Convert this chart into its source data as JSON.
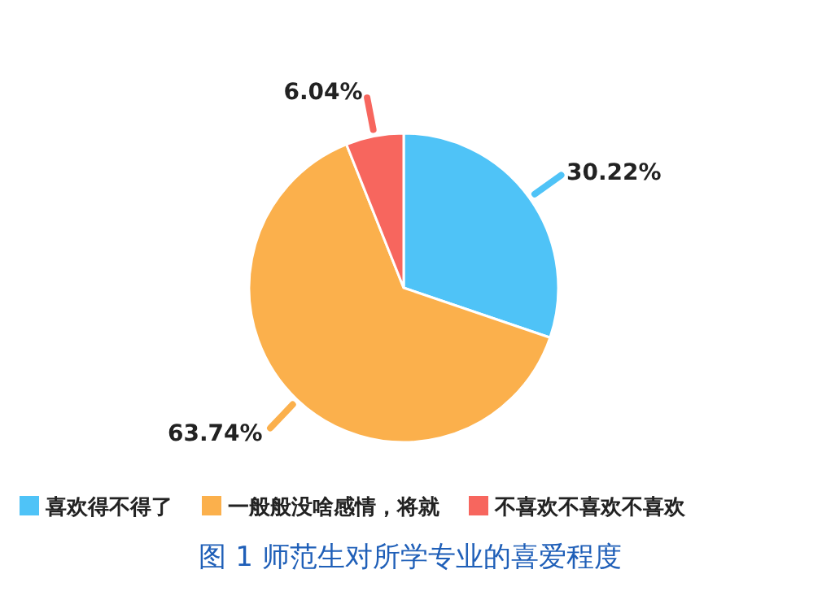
{
  "chart_data": {
    "type": "pie",
    "title": "图 1 师范生对所学专业的喜爱程度",
    "categories": [
      "喜欢得不得了",
      "一般般没啥感情，将就",
      "不喜欢不喜欢不喜欢"
    ],
    "values": [
      30.22,
      63.74,
      6.04
    ],
    "colors": [
      "#4fc3f7",
      "#fbb04c",
      "#f7665e"
    ],
    "value_labels": [
      "30.22%",
      "63.74%",
      "6.04%"
    ],
    "legend": "bottom"
  }
}
